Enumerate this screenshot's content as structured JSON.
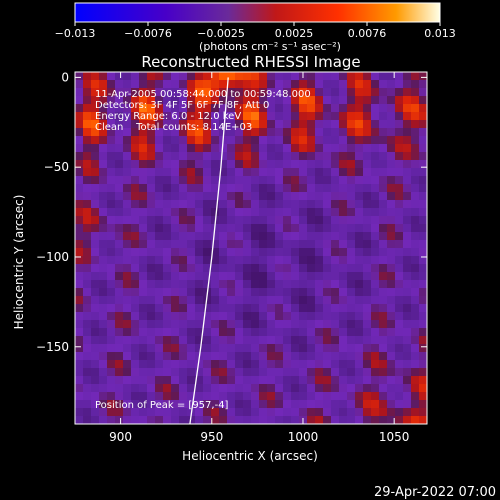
{
  "chart_data": {
    "type": "heatmap",
    "title": "Reconstructed RHESSI Image",
    "xlabel": "Heliocentric X (arcsec)",
    "ylabel": "Heliocentric Y (arcsec)",
    "xlim": [
      875,
      1068
    ],
    "ylim": [
      -193,
      3
    ],
    "x_ticks": [
      900,
      950,
      1000,
      1050
    ],
    "y_ticks": [
      0,
      -50,
      -100,
      -150
    ],
    "colorbar": {
      "range": [
        -0.013,
        0.013
      ],
      "ticks": [
        "−0.013",
        "−0.0076",
        "−0.0025",
        "0.0025",
        "0.0076",
        "0.013"
      ],
      "units_label": "(photons cm⁻² s⁻¹ asec⁻²)",
      "colors": [
        "#0000ff",
        "#5000c0",
        "#6a2a9a",
        "#c02020",
        "#ff3000",
        "#ff9000",
        "#ffffe0"
      ]
    },
    "annotations": [
      "11-Apr-2005 00:58:44.000 to 00:59:48.000",
      "Detectors: 3F 4F 5F 6F 7F 8F, Att 0",
      "Energy Range: 6.0 - 12.0 keV",
      "Clean    Total counts: 8.14E+03"
    ],
    "peak_label": "Position of Peak = [957,-4]",
    "peak": [
      957,
      -4
    ],
    "limb_curve": [
      [
        938,
        -193
      ],
      [
        944,
        -150
      ],
      [
        950,
        -100
      ],
      [
        955,
        -50
      ],
      [
        959,
        0
      ]
    ],
    "grid": false
  },
  "footer": {
    "timestamp": "29-Apr-2022 07:00"
  }
}
